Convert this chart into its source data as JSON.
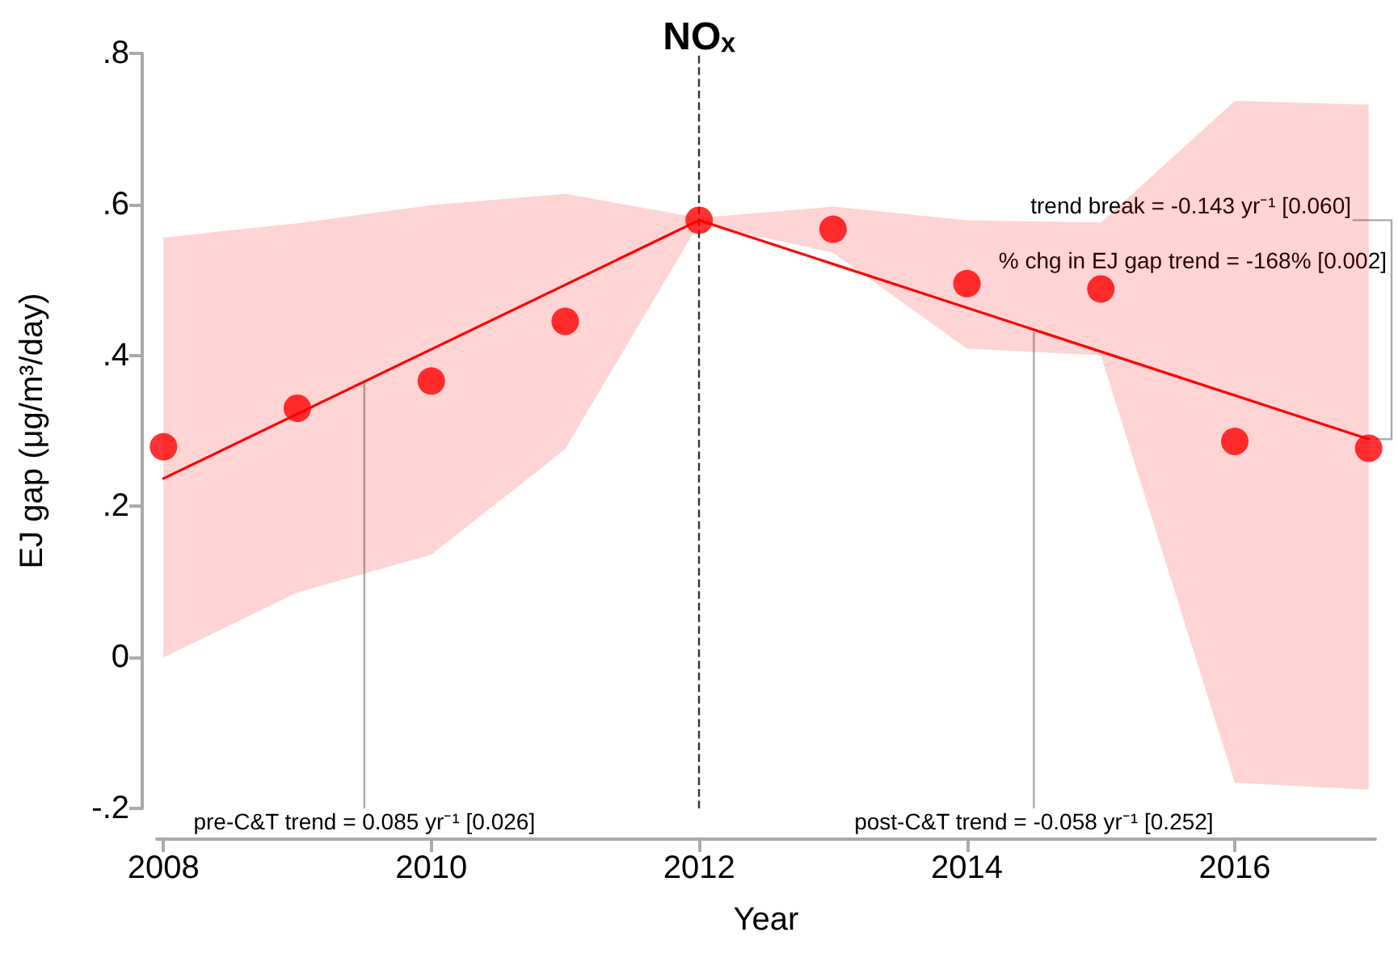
{
  "chart_data": {
    "type": "scatter",
    "title": "NOₓ",
    "xlabel": "Year",
    "ylabel": "EJ gap (μg/m³/day)",
    "x": [
      2008,
      2009,
      2010,
      2011,
      2012,
      2013,
      2014,
      2015,
      2016,
      2017
    ],
    "series": [
      {
        "color": "#ff0000",
        "marker": "circle",
        "values": [
          0.279,
          0.33,
          0.366,
          0.445,
          0.579,
          0.567,
          0.495,
          0.488,
          0.286,
          0.277
        ],
        "lower": [
          0.0,
          0.086,
          0.136,
          0.276,
          0.575,
          0.536,
          0.409,
          0.4,
          -0.166,
          -0.175
        ],
        "upper": [
          0.556,
          0.575,
          0.599,
          0.614,
          0.582,
          0.597,
          0.579,
          0.576,
          0.737,
          0.732
        ]
      },
      {
        "type": "line",
        "color": "#ff0000",
        "marker": "none",
        "line_style": "solid",
        "x": [
          2008,
          2012,
          2017
        ],
        "values": [
          0.237,
          0.579,
          0.289
        ]
      }
    ],
    "xlim": [
      2007.95,
      2017.05
    ],
    "xticks": [
      2008,
      2010,
      2012,
      2014,
      2016
    ],
    "ylim": [
      -0.2,
      0.8
    ],
    "yticks": [
      {
        "value": -0.2,
        "label": "-.2"
      },
      {
        "value": 0,
        "label": "0"
      },
      {
        "value": 0.2,
        "label": ".2"
      },
      {
        "value": 0.4,
        "label": ".4"
      },
      {
        "value": 0.6,
        "label": ".6"
      },
      {
        "value": 0.8,
        "label": ".8"
      }
    ],
    "ref_lines": [
      {
        "axis": "x",
        "value": 2012,
        "color": "#333333",
        "line_style": "dashed"
      }
    ],
    "annotations": [
      {
        "text": "pre-C&T trend = 0.085 yr⁻¹ [0.026]",
        "x": 2009.5,
        "y": 0.364
      },
      {
        "text": "post-C&T trend = -0.058 yr⁻¹ [0.252]",
        "x": 2014.5,
        "y": 0.431
      },
      {
        "text": "trend break = -0.143 yr⁻¹ [0.060]",
        "x": 2017,
        "y": 0.579
      },
      {
        "text": "% chg in EJ gap trend = -168% [0.002]",
        "x": 2017,
        "y": 0.579
      }
    ],
    "grid": false
  }
}
